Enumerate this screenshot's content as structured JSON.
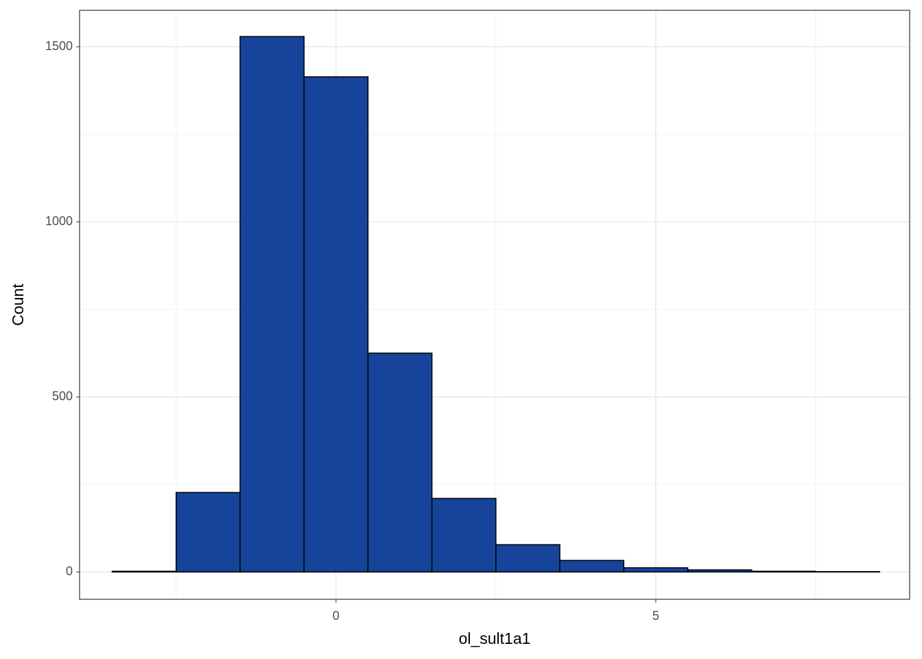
{
  "chart_data": {
    "type": "histogram",
    "x_label": "ol_sult1a1",
    "y_label": "Count",
    "bins": [
      -3.5,
      -2.5,
      -1.5,
      -0.5,
      0.5,
      1.5,
      2.5,
      3.5,
      4.5,
      5.5,
      6.5,
      7.5,
      8.5
    ],
    "values": [
      2,
      227,
      1529,
      1414,
      625,
      210,
      78,
      33,
      12,
      6,
      2,
      1
    ],
    "color": "#18439a",
    "edge_color": "#000000",
    "xlim": [
      -4.01,
      8.97
    ],
    "ylim": [
      -78,
      1604
    ],
    "xticks": [
      0,
      5
    ],
    "yticks": [
      0,
      500,
      1000,
      1500
    ],
    "x_minor_ticks": [
      -2.5,
      2.5,
      7.5
    ],
    "y_minor_ticks": [
      250,
      750,
      1250
    ],
    "grid": true
  }
}
